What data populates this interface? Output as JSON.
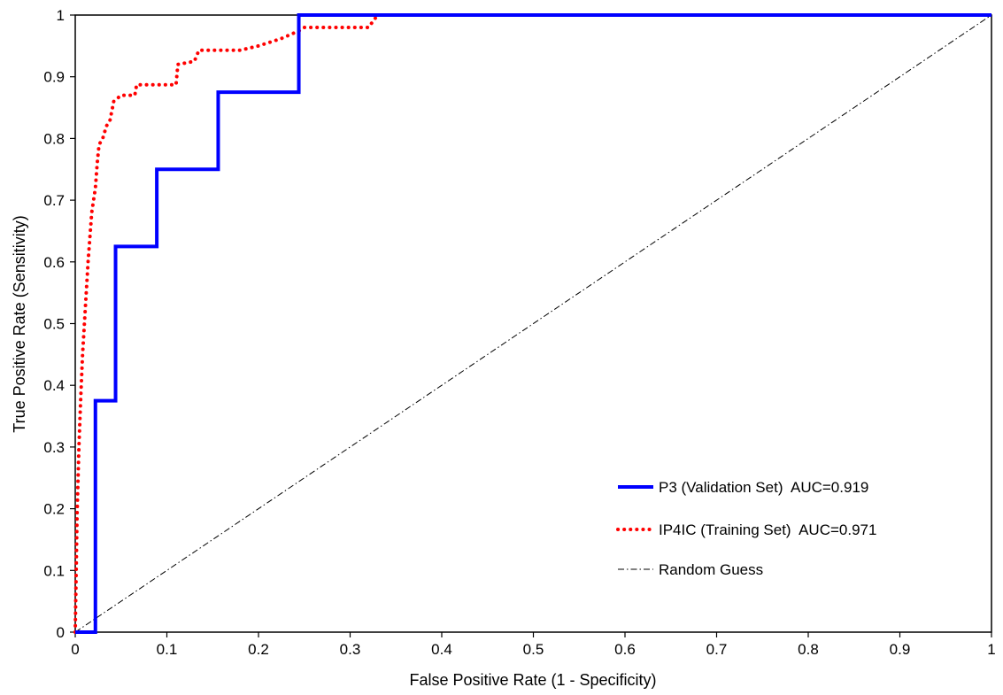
{
  "chart_data": {
    "type": "line",
    "title": "",
    "xlabel": "False Positive Rate (1 - Specificity)",
    "ylabel": "True Positive Rate (Sensitivity)",
    "xlim": [
      0,
      1
    ],
    "ylim": [
      0,
      1
    ],
    "x_ticks": [
      "0",
      "0.1",
      "0.2",
      "0.3",
      "0.4",
      "0.5",
      "0.6",
      "0.7",
      "0.8",
      "0.9",
      "1"
    ],
    "y_ticks": [
      "0",
      "0.1",
      "0.2",
      "0.3",
      "0.4",
      "0.5",
      "0.6",
      "0.7",
      "0.8",
      "0.9",
      "1"
    ],
    "grid": false,
    "legend_position": "bottom-right",
    "series": [
      {
        "name": "P3 (Validation Set)  AUC=0.919",
        "color": "#0000ff",
        "style": "solid",
        "points": [
          [
            0,
            0
          ],
          [
            0.022,
            0
          ],
          [
            0.022,
            0.375
          ],
          [
            0.044,
            0.375
          ],
          [
            0.044,
            0.625
          ],
          [
            0.089,
            0.625
          ],
          [
            0.089,
            0.75
          ],
          [
            0.156,
            0.75
          ],
          [
            0.156,
            0.875
          ],
          [
            0.244,
            0.875
          ],
          [
            0.244,
            1.0
          ],
          [
            1.0,
            1.0
          ]
        ]
      },
      {
        "name": "IP4IC (Training Set)  AUC=0.971",
        "color": "#ff0000",
        "style": "dotted",
        "points": [
          [
            0,
            0
          ],
          [
            0.002,
            0.19
          ],
          [
            0.004,
            0.3
          ],
          [
            0.006,
            0.38
          ],
          [
            0.008,
            0.45
          ],
          [
            0.01,
            0.5
          ],
          [
            0.012,
            0.55
          ],
          [
            0.014,
            0.6
          ],
          [
            0.016,
            0.64
          ],
          [
            0.018,
            0.68
          ],
          [
            0.02,
            0.7
          ],
          [
            0.022,
            0.72
          ],
          [
            0.024,
            0.76
          ],
          [
            0.026,
            0.79
          ],
          [
            0.03,
            0.8
          ],
          [
            0.034,
            0.82
          ],
          [
            0.038,
            0.83
          ],
          [
            0.042,
            0.86
          ],
          [
            0.05,
            0.87
          ],
          [
            0.065,
            0.87
          ],
          [
            0.067,
            0.887
          ],
          [
            0.11,
            0.887
          ],
          [
            0.112,
            0.92
          ],
          [
            0.13,
            0.925
          ],
          [
            0.135,
            0.943
          ],
          [
            0.18,
            0.943
          ],
          [
            0.2,
            0.95
          ],
          [
            0.225,
            0.962
          ],
          [
            0.245,
            0.975
          ],
          [
            0.25,
            0.98
          ],
          [
            0.32,
            0.98
          ],
          [
            0.33,
            1.0
          ],
          [
            1.0,
            1.0
          ]
        ]
      },
      {
        "name": "Random Guess",
        "color": "#000000",
        "style": "dashdot",
        "points": [
          [
            0,
            0
          ],
          [
            1,
            1
          ]
        ]
      }
    ]
  }
}
